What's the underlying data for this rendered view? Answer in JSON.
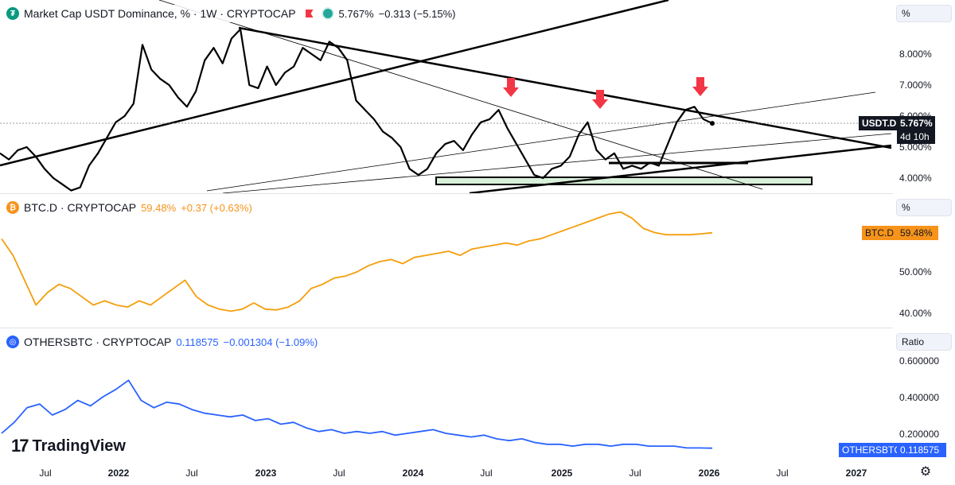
{
  "panes": [
    {
      "symbol_icon_color": "#089981",
      "title": "Market Cap USDT Dominance, % · 1W · CRYPTOCAP",
      "value": "5.767%",
      "change": "−0.313 (−5.15%)",
      "unit": "%",
      "ticks": [
        "8.000%",
        "7.000%",
        "6.000%",
        "5.000%",
        "4.000%"
      ],
      "last_symbol": "USDT.D",
      "last_value": "5.767%",
      "countdown": "4d 10h",
      "line_color": "#000000"
    },
    {
      "symbol_icon_color": "#f7931a",
      "title": "BTC.D · CRYPTOCAP",
      "value": "59.48%",
      "change": "+0.37 (+0.63%)",
      "unit": "%",
      "ticks": [
        "50.00%",
        "40.00%"
      ],
      "last_symbol": "BTC.D",
      "last_value": "59.48%",
      "line_color": "#f59e0b"
    },
    {
      "symbol_icon_color": "#2962ff",
      "title": "OTHERSBTC · CRYPTOCAP",
      "value": "0.118575",
      "change": "−0.001304 (−1.09%)",
      "unit": "Ratio",
      "ticks": [
        "0.600000",
        "0.400000",
        "0.200000"
      ],
      "last_symbol": "OTHERSBTC",
      "last_value": "0.118575",
      "line_color": "#2962ff"
    }
  ],
  "x_axis": [
    "Jul",
    "2022",
    "Jul",
    "2023",
    "Jul",
    "2024",
    "Jul",
    "2025",
    "Jul",
    "2026",
    "Jul",
    "2027"
  ],
  "brand": "TradingView",
  "colors": {
    "arrow": "#f23645",
    "support_zone": "#d8efd9"
  },
  "chart_data": [
    {
      "type": "line",
      "title": "Market Cap USDT Dominance, % · 1W · CRYPTOCAP",
      "series": [
        {
          "name": "USDT.D",
          "values": [
            4.8,
            4.6,
            4.9,
            5.0,
            4.7,
            4.3,
            4.0,
            3.8,
            3.6,
            3.7,
            4.4,
            4.8,
            5.3,
            5.8,
            6.0,
            6.4,
            8.3,
            7.5,
            7.2,
            7.0,
            6.6,
            6.3,
            6.8,
            7.8,
            8.2,
            7.7,
            8.5,
            8.8,
            7.0,
            6.9,
            7.6,
            7.0,
            7.4,
            7.6,
            8.2,
            8.0,
            7.8,
            8.4,
            8.2,
            7.8,
            6.5,
            6.2,
            5.9,
            5.5,
            5.3,
            5.0,
            4.3,
            4.1,
            4.3,
            4.8,
            5.1,
            5.2,
            4.9,
            5.4,
            5.8,
            5.9,
            6.2,
            5.6,
            5.1,
            4.6,
            4.1,
            4.0,
            4.3,
            4.4,
            4.7,
            5.4,
            5.8,
            4.9,
            4.6,
            4.8,
            4.3,
            4.4,
            4.3,
            4.5,
            4.4,
            5.1,
            5.8,
            6.2,
            6.3,
            5.9,
            5.767
          ]
        }
      ],
      "y_range": [
        3.6,
        9.2
      ],
      "grid": false,
      "annotations": [
        "three down arrows at local highs",
        "descending resistance trendline",
        "support zone near 4%"
      ]
    },
    {
      "type": "line",
      "title": "BTC.D · CRYPTOCAP",
      "series": [
        {
          "name": "BTC.D",
          "values": [
            58.0,
            54.0,
            48.0,
            42.0,
            45.0,
            47.0,
            46.0,
            44.0,
            42.0,
            43.0,
            42.0,
            41.5,
            43.0,
            42.0,
            44.0,
            46.0,
            48.0,
            44.0,
            42.0,
            41.0,
            40.5,
            41.0,
            42.5,
            41.0,
            40.8,
            41.5,
            43.0,
            46.0,
            47.0,
            48.5,
            49.0,
            50.0,
            51.5,
            52.5,
            53.0,
            52.0,
            53.5,
            54.0,
            54.5,
            55.0,
            54.0,
            55.5,
            56.0,
            56.5,
            57.0,
            56.5,
            57.5,
            58.0,
            59.0,
            60.0,
            61.0,
            62.0,
            63.0,
            64.0,
            64.5,
            63.0,
            60.5,
            59.5,
            59.0,
            59.0,
            59.0,
            59.2,
            59.48
          ]
        }
      ],
      "y_range": [
        39.0,
        66.0
      ],
      "grid": false
    },
    {
      "type": "line",
      "title": "OTHERSBTC · CRYPTOCAP",
      "series": [
        {
          "name": "OTHERSBTC",
          "values": [
            0.2,
            0.26,
            0.34,
            0.36,
            0.3,
            0.33,
            0.38,
            0.35,
            0.4,
            0.44,
            0.49,
            0.38,
            0.34,
            0.37,
            0.36,
            0.33,
            0.31,
            0.3,
            0.29,
            0.3,
            0.27,
            0.28,
            0.25,
            0.26,
            0.23,
            0.21,
            0.22,
            0.2,
            0.21,
            0.2,
            0.21,
            0.19,
            0.2,
            0.21,
            0.22,
            0.2,
            0.19,
            0.18,
            0.19,
            0.17,
            0.16,
            0.17,
            0.15,
            0.14,
            0.14,
            0.13,
            0.14,
            0.14,
            0.13,
            0.14,
            0.14,
            0.13,
            0.13,
            0.13,
            0.12,
            0.12,
            0.118575
          ]
        }
      ],
      "y_range": [
        0.07,
        0.68
      ],
      "grid": false
    }
  ]
}
